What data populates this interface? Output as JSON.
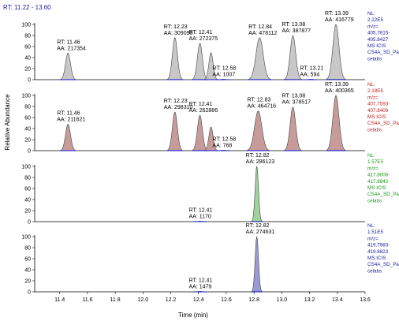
{
  "header": {
    "rt_range": "RT: 11.22 - 13.60"
  },
  "chart_data": {
    "type": "line",
    "title": "",
    "xlabel": "Time (min)",
    "ylabel": "Relative Abundance",
    "xlim": [
      11.22,
      13.6
    ],
    "ylim": [
      0,
      100
    ],
    "x_ticks": [
      "11.4",
      "11.6",
      "11.8",
      "12.0",
      "12.2",
      "12.4",
      "12.6",
      "12.8",
      "13.0",
      "13.2",
      "13.4",
      "13.6"
    ],
    "y_ticks": [
      "0",
      "20",
      "40",
      "60",
      "80",
      "100"
    ],
    "grid": false,
    "legend": "none",
    "panels": [
      {
        "fill": "#c8c8c8",
        "info": {
          "nl": "NL:",
          "value": "2.22E5",
          "line1": "m/z=",
          "line2": "405.7615-",
          "line3": "405.8427",
          "line4": "MS ICIS",
          "line5": "CS4A_SD_Pa",
          "line6": "celabs",
          "color": "#1a1aa0"
        },
        "peaks": [
          {
            "rt": 11.46,
            "height": 48,
            "width": 0.018,
            "rt_label": "RT: 11.46",
            "aa_label": "AA: 217354"
          },
          {
            "rt": 12.23,
            "height": 76,
            "width": 0.018,
            "rt_label": "RT: 12.23",
            "aa_label": "AA: 309090"
          },
          {
            "rt": 12.41,
            "height": 66,
            "width": 0.018,
            "rt_label": "RT: 12.41",
            "aa_label": "AA: 272375"
          },
          {
            "rt": 12.49,
            "height": 49,
            "width": 0.015,
            "rt_label": "",
            "aa_label": ""
          },
          {
            "rt": 12.58,
            "height": 1,
            "width": 0.015,
            "rt_label": "RT: 12.58",
            "aa_label": "AA: 1007"
          },
          {
            "rt": 12.84,
            "height": 76,
            "width": 0.026,
            "rt_label": "RT: 12.84",
            "aa_label": "AA: 478112"
          },
          {
            "rt": 13.08,
            "height": 80,
            "width": 0.02,
            "rt_label": "RT: 13.08",
            "aa_label": "AA: 387877"
          },
          {
            "rt": 13.21,
            "height": 1,
            "width": 0.015,
            "rt_label": "RT: 13.21",
            "aa_label": "AA: 594"
          },
          {
            "rt": 13.39,
            "height": 100,
            "width": 0.022,
            "rt_label": "RT: 13.39",
            "aa_label": "AA: 416779"
          }
        ]
      },
      {
        "fill": "#c89b9b",
        "info": {
          "nl": "NL:",
          "value": "2.18E5",
          "line1": "m/z=",
          "line2": "407.7593-",
          "line3": "407.8409",
          "line4": "MS ICIS",
          "line5": "CS4A_SD_Pa",
          "line6": "celabs",
          "color": "#c02020"
        },
        "peaks": [
          {
            "rt": 11.46,
            "height": 48,
            "width": 0.018,
            "rt_label": "RT: 11.46",
            "aa_label": "AA: 211621"
          },
          {
            "rt": 12.23,
            "height": 70,
            "width": 0.018,
            "rt_label": "RT: 12.23",
            "aa_label": "AA: 298310"
          },
          {
            "rt": 12.41,
            "height": 64,
            "width": 0.018,
            "rt_label": "RT: 12.41",
            "aa_label": "AA: 262886"
          },
          {
            "rt": 12.49,
            "height": 43,
            "width": 0.015,
            "rt_label": "",
            "aa_label": ""
          },
          {
            "rt": 12.58,
            "height": 1,
            "width": 0.015,
            "rt_label": "RT: 12.58",
            "aa_label": "AA: 768"
          },
          {
            "rt": 12.83,
            "height": 72,
            "width": 0.026,
            "rt_label": "RT: 12.83",
            "aa_label": "AA: 464716"
          },
          {
            "rt": 13.08,
            "height": 79,
            "width": 0.02,
            "rt_label": "RT: 13.08",
            "aa_label": "AA: 378517"
          },
          {
            "rt": 13.39,
            "height": 100,
            "width": 0.022,
            "rt_label": "RT: 13.39",
            "aa_label": "AA: 400365"
          }
        ]
      },
      {
        "fill": "#9ed29e",
        "info": {
          "nl": "NL:",
          "value": "1.57E5",
          "line1": "m/z=",
          "line2": "417.8006-",
          "line3": "417.8842",
          "line4": "MS ICIS",
          "line5": "CS4A_SD_Pa",
          "line6": "celabs",
          "color": "#1a9a1a"
        },
        "peaks": [
          {
            "rt": 12.41,
            "height": 1,
            "width": 0.015,
            "rt_label": "RT: 12.41",
            "aa_label": "AA: 1170"
          },
          {
            "rt": 12.82,
            "height": 100,
            "width": 0.012,
            "rt_label": "RT: 12.82",
            "aa_label": "AA: 286123"
          }
        ]
      },
      {
        "fill": "#9a9ad6",
        "info": {
          "nl": "NL:",
          "value": "1.51E5",
          "line1": "m/z=",
          "line2": "419.7983-",
          "line3": "419.8823",
          "line4": "MS ICIS",
          "line5": "CS4A_SD_Pa",
          "line6": "celabs",
          "color": "#1a1aa0"
        },
        "peaks": [
          {
            "rt": 12.41,
            "height": 1,
            "width": 0.015,
            "rt_label": "RT: 12.41",
            "aa_label": "AA: 1479"
          },
          {
            "rt": 12.82,
            "height": 100,
            "width": 0.012,
            "rt_label": "RT: 12.82",
            "aa_label": "AA: 274631"
          }
        ]
      }
    ]
  }
}
